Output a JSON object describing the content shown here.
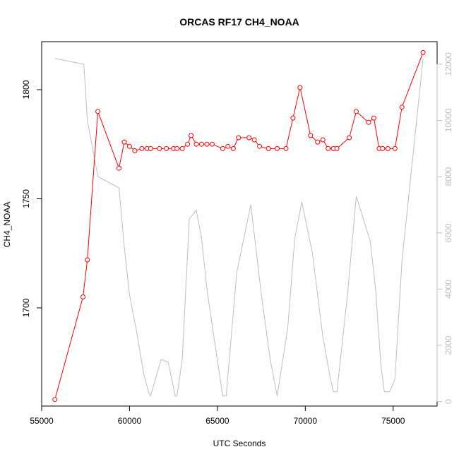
{
  "chart_data": {
    "type": "line",
    "title": "ORCAS RF17 CH4_NOAA",
    "xlabel": "UTC Seconds",
    "ylabel": "CH4_NOAA",
    "xlim": [
      55000,
      77500
    ],
    "ylim": [
      1655,
      1822
    ],
    "y2lim": [
      -160,
      12800
    ],
    "x_ticks": [
      55000,
      60000,
      65000,
      70000,
      75000
    ],
    "y_ticks": [
      1700,
      1750,
      1800
    ],
    "y2_ticks": [
      0,
      2000,
      4000,
      6000,
      8000,
      10000,
      12000
    ],
    "grid": false,
    "series": [
      {
        "axis": "left",
        "color": "#ff0000",
        "style": "line-markers",
        "points": [
          [
            55750,
            1658
          ],
          [
            57350,
            1705
          ],
          [
            57600,
            1722
          ],
          [
            58200,
            1790
          ],
          [
            59400,
            1764
          ],
          [
            59700,
            1776
          ],
          [
            60000,
            1774
          ],
          [
            60300,
            1772
          ],
          [
            60700,
            1773
          ],
          [
            61000,
            1773
          ],
          [
            61200,
            1773
          ],
          [
            61700,
            1773
          ],
          [
            62100,
            1773
          ],
          [
            62500,
            1773
          ],
          [
            62700,
            1773
          ],
          [
            63000,
            1773
          ],
          [
            63300,
            1775
          ],
          [
            63500,
            1779
          ],
          [
            63800,
            1775
          ],
          [
            64100,
            1775
          ],
          [
            64400,
            1775
          ],
          [
            64700,
            1775
          ],
          [
            65300,
            1773
          ],
          [
            65600,
            1774
          ],
          [
            65900,
            1773
          ],
          [
            66200,
            1778
          ],
          [
            66800,
            1778
          ],
          [
            67100,
            1777
          ],
          [
            67400,
            1774
          ],
          [
            67900,
            1773
          ],
          [
            68400,
            1773
          ],
          [
            68900,
            1773
          ],
          [
            69300,
            1787
          ],
          [
            69700,
            1801
          ],
          [
            70300,
            1779
          ],
          [
            70700,
            1776
          ],
          [
            71000,
            1777
          ],
          [
            71300,
            1773
          ],
          [
            71600,
            1773
          ],
          [
            71800,
            1773
          ],
          [
            72500,
            1778
          ],
          [
            72900,
            1790
          ],
          [
            73600,
            1785
          ],
          [
            73900,
            1787
          ],
          [
            74200,
            1773
          ],
          [
            74400,
            1773
          ],
          [
            74700,
            1773
          ],
          [
            75100,
            1773
          ],
          [
            75500,
            1792
          ],
          [
            76700,
            1817
          ]
        ]
      },
      {
        "axis": "right",
        "color": "#bebebe",
        "style": "line",
        "points": [
          [
            55750,
            12200
          ],
          [
            57400,
            12000
          ],
          [
            57600,
            10000
          ],
          [
            58200,
            8000
          ],
          [
            59400,
            7600
          ],
          [
            59700,
            5500
          ],
          [
            60000,
            3800
          ],
          [
            60400,
            2500
          ],
          [
            60800,
            1000
          ],
          [
            61100,
            300
          ],
          [
            61200,
            200
          ],
          [
            61800,
            1500
          ],
          [
            62200,
            1400
          ],
          [
            62600,
            200
          ],
          [
            62700,
            200
          ],
          [
            63000,
            1500
          ],
          [
            63400,
            6500
          ],
          [
            63800,
            6800
          ],
          [
            64100,
            5800
          ],
          [
            64400,
            4000
          ],
          [
            64800,
            2300
          ],
          [
            65300,
            200
          ],
          [
            65500,
            200
          ],
          [
            66100,
            4600
          ],
          [
            66900,
            7000
          ],
          [
            67500,
            3800
          ],
          [
            68000,
            1500
          ],
          [
            68400,
            200
          ],
          [
            69000,
            2600
          ],
          [
            69400,
            5800
          ],
          [
            69800,
            7100
          ],
          [
            70400,
            5300
          ],
          [
            71000,
            2300
          ],
          [
            71400,
            900
          ],
          [
            71600,
            350
          ],
          [
            71800,
            350
          ],
          [
            72400,
            3800
          ],
          [
            72900,
            7300
          ],
          [
            73700,
            5700
          ],
          [
            74000,
            4000
          ],
          [
            74300,
            1300
          ],
          [
            74500,
            350
          ],
          [
            74800,
            350
          ],
          [
            75100,
            800
          ],
          [
            75500,
            5000
          ],
          [
            76700,
            12200
          ]
        ]
      }
    ]
  }
}
